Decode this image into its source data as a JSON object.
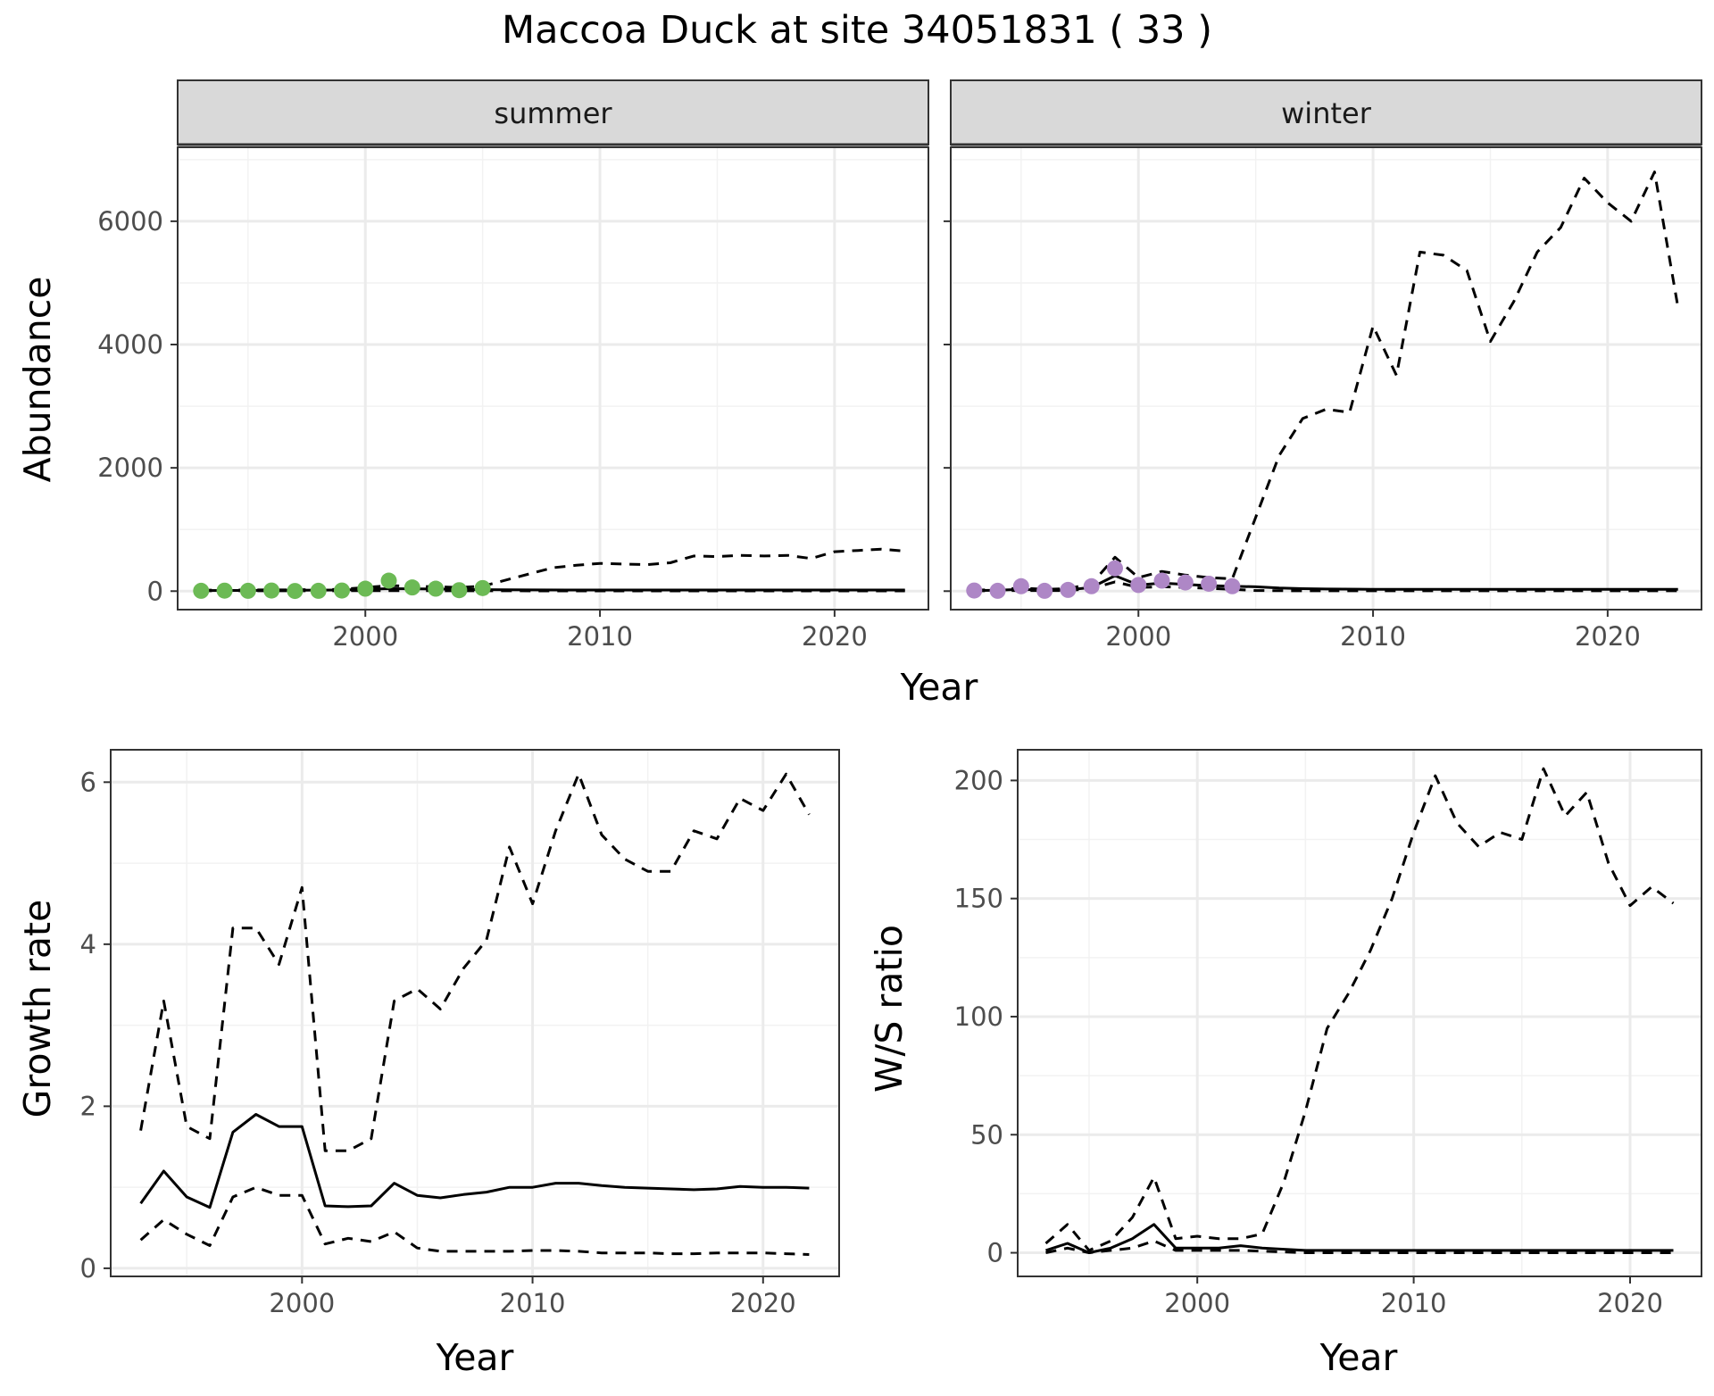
{
  "title": "Maccoa Duck at site 34051831 ( 33 )",
  "colors": {
    "summer_points": "#6CBA55",
    "winter_points": "#AE87C6",
    "line": "#000000",
    "strip_fill": "#D9D9D9",
    "grid": "#EBEBEB"
  },
  "chart_data": [
    {
      "type": "line",
      "panel": "summer",
      "strip_label": "summer",
      "xlabel": "Year",
      "ylabel": "Abundance",
      "xlim": [
        1992,
        2024
      ],
      "ylim": [
        -300,
        7200
      ],
      "xticks": [
        2000,
        2010,
        2020
      ],
      "yticks": [
        0,
        2000,
        4000,
        6000
      ],
      "grid": true,
      "series": [
        {
          "style": "solid",
          "x": [
            1993,
            1995,
            1997,
            1999,
            2001,
            2003,
            2005,
            2007,
            2010,
            2013,
            2016,
            2019,
            2023
          ],
          "values": [
            10,
            12,
            14,
            18,
            40,
            35,
            25,
            20,
            18,
            18,
            18,
            18,
            18
          ]
        },
        {
          "style": "dashed",
          "x": [
            1993,
            1995,
            1997,
            1999,
            2001,
            2002,
            2003,
            2004,
            2005,
            2006,
            2007,
            2008,
            2009,
            2010,
            2011,
            2012,
            2013,
            2014,
            2015,
            2016,
            2017,
            2018,
            2019,
            2020,
            2021,
            2022,
            2023
          ],
          "values": [
            15,
            20,
            22,
            30,
            90,
            80,
            70,
            60,
            80,
            180,
            280,
            380,
            420,
            450,
            440,
            430,
            460,
            570,
            560,
            580,
            570,
            580,
            530,
            640,
            660,
            680,
            650
          ]
        },
        {
          "style": "dashed",
          "x": [
            1993,
            1997,
            2001,
            2005,
            2010,
            2015,
            2020,
            2023
          ],
          "values": [
            5,
            6,
            8,
            5,
            4,
            4,
            4,
            4
          ]
        }
      ],
      "points": {
        "x": [
          1993,
          1994,
          1995,
          1996,
          1997,
          1998,
          1999,
          2000,
          2001,
          2002,
          2003,
          2004,
          2005
        ],
        "values": [
          5,
          8,
          5,
          10,
          3,
          5,
          10,
          40,
          170,
          60,
          40,
          15,
          50
        ]
      }
    },
    {
      "type": "line",
      "panel": "winter",
      "strip_label": "winter",
      "xlabel": "Year",
      "ylabel": "Abundance",
      "xlim": [
        1992,
        2024
      ],
      "ylim": [
        -300,
        7200
      ],
      "xticks": [
        2000,
        2010,
        2020
      ],
      "yticks": [
        0,
        2000,
        4000,
        6000
      ],
      "grid": true,
      "series": [
        {
          "style": "solid",
          "x": [
            1993,
            1994,
            1995,
            1996,
            1997,
            1998,
            1999,
            2000,
            2001,
            2002,
            2003,
            2004,
            2005,
            2006,
            2007,
            2008,
            2010,
            2013,
            2016,
            2019,
            2023
          ],
          "values": [
            10,
            15,
            30,
            15,
            20,
            60,
            250,
            100,
            130,
            110,
            90,
            80,
            70,
            50,
            40,
            35,
            30,
            30,
            30,
            30,
            30
          ]
        },
        {
          "style": "dashed",
          "x": [
            1993,
            1994,
            1995,
            1996,
            1997,
            1998,
            1999,
            2000,
            2001,
            2002,
            2003,
            2004,
            2005,
            2006,
            2007,
            2008,
            2009,
            2010,
            2011,
            2012,
            2013,
            2014,
            2015,
            2016,
            2017,
            2018,
            2019,
            2020,
            2021,
            2022,
            2023
          ],
          "values": [
            15,
            25,
            50,
            30,
            40,
            120,
            550,
            220,
            320,
            260,
            220,
            200,
            1200,
            2200,
            2800,
            2950,
            2900,
            4300,
            3500,
            5500,
            5450,
            5200,
            4050,
            4700,
            5500,
            5900,
            6700,
            6300,
            6000,
            6800,
            4600
          ]
        },
        {
          "style": "dashed",
          "x": [
            1993,
            1995,
            1997,
            1998,
            1999,
            2000,
            2001,
            2002,
            2003,
            2004,
            2005,
            2007,
            2010,
            2015,
            2020,
            2023
          ],
          "values": [
            5,
            10,
            10,
            40,
            150,
            60,
            70,
            60,
            45,
            30,
            10,
            5,
            5,
            5,
            5,
            5
          ]
        }
      ],
      "points": {
        "x": [
          1993,
          1994,
          1995,
          1996,
          1997,
          1998,
          1999,
          2000,
          2001,
          2002,
          2003,
          2004
        ],
        "values": [
          10,
          5,
          80,
          5,
          20,
          80,
          370,
          100,
          170,
          140,
          120,
          80
        ]
      }
    },
    {
      "type": "line",
      "panel": "growth",
      "xlabel": "Year",
      "ylabel": "Growth rate",
      "xlim": [
        1991.7,
        2023.3
      ],
      "ylim": [
        -0.1,
        6.4
      ],
      "xticks": [
        2000,
        2010,
        2020
      ],
      "yticks": [
        0,
        2,
        4,
        6
      ],
      "grid": true,
      "series": [
        {
          "style": "solid",
          "x": [
            1993,
            1994,
            1995,
            1996,
            1997,
            1998,
            1999,
            2000,
            2001,
            2002,
            2003,
            2004,
            2005,
            2006,
            2007,
            2008,
            2009,
            2010,
            2011,
            2012,
            2013,
            2014,
            2015,
            2016,
            2017,
            2018,
            2019,
            2020,
            2021,
            2022
          ],
          "values": [
            0.8,
            1.2,
            0.88,
            0.75,
            1.68,
            1.9,
            1.75,
            1.75,
            0.77,
            0.76,
            0.77,
            1.05,
            0.9,
            0.87,
            0.91,
            0.94,
            1.0,
            1.0,
            1.05,
            1.05,
            1.02,
            1.0,
            0.99,
            0.98,
            0.97,
            0.98,
            1.01,
            1.0,
            1.0,
            0.99
          ]
        },
        {
          "style": "dashed",
          "x": [
            1993,
            1994,
            1995,
            1996,
            1997,
            1998,
            1999,
            2000,
            2001,
            2002,
            2003,
            2004,
            2005,
            2006,
            2007,
            2008,
            2009,
            2010,
            2011,
            2012,
            2013,
            2014,
            2015,
            2016,
            2017,
            2018,
            2019,
            2020,
            2021,
            2022
          ],
          "values": [
            1.7,
            3.3,
            1.75,
            1.6,
            4.2,
            4.2,
            3.75,
            4.7,
            1.45,
            1.45,
            1.6,
            3.3,
            3.45,
            3.2,
            3.7,
            4.05,
            5.2,
            4.5,
            5.4,
            6.1,
            5.35,
            5.05,
            4.9,
            4.9,
            5.4,
            5.3,
            5.8,
            5.65,
            6.1,
            5.6
          ]
        },
        {
          "style": "dashed",
          "x": [
            1993,
            1994,
            1995,
            1996,
            1997,
            1998,
            1999,
            2000,
            2001,
            2002,
            2003,
            2004,
            2005,
            2006,
            2007,
            2008,
            2009,
            2010,
            2011,
            2012,
            2013,
            2014,
            2015,
            2016,
            2017,
            2018,
            2019,
            2020,
            2021,
            2022
          ],
          "values": [
            0.35,
            0.6,
            0.42,
            0.28,
            0.88,
            1.0,
            0.9,
            0.9,
            0.3,
            0.37,
            0.33,
            0.45,
            0.25,
            0.21,
            0.21,
            0.21,
            0.21,
            0.22,
            0.22,
            0.21,
            0.19,
            0.19,
            0.19,
            0.18,
            0.18,
            0.19,
            0.19,
            0.19,
            0.18,
            0.17
          ]
        }
      ]
    },
    {
      "type": "line",
      "panel": "ratio",
      "xlabel": "Year",
      "ylabel": "W/S ratio",
      "xlim": [
        1991.7,
        2023.3
      ],
      "ylim": [
        -10,
        213
      ],
      "xticks": [
        2000,
        2010,
        2020
      ],
      "yticks": [
        0,
        50,
        100,
        150,
        200
      ],
      "grid": true,
      "series": [
        {
          "style": "solid",
          "x": [
            1993,
            1994,
            1995,
            1996,
            1997,
            1998,
            1999,
            2000,
            2001,
            2002,
            2003,
            2005,
            2008,
            2011,
            2014,
            2017,
            2020,
            2022
          ],
          "values": [
            1,
            4,
            0,
            2,
            6,
            12,
            2,
            2,
            2,
            3,
            2,
            1,
            1,
            1,
            1,
            1,
            1,
            1
          ]
        },
        {
          "style": "dashed",
          "x": [
            1993,
            1994,
            1995,
            1996,
            1997,
            1998,
            1999,
            2000,
            2001,
            2002,
            2003,
            2004,
            2005,
            2006,
            2007,
            2008,
            2009,
            2010,
            2011,
            2012,
            2013,
            2014,
            2015,
            2016,
            2017,
            2018,
            2019,
            2020,
            2021,
            2022
          ],
          "values": [
            4,
            12,
            1,
            5,
            15,
            32,
            6,
            7,
            6,
            6,
            8,
            30,
            60,
            95,
            110,
            128,
            150,
            178,
            202,
            182,
            172,
            178,
            175,
            205,
            185,
            195,
            165,
            147,
            155,
            148
          ]
        },
        {
          "style": "dashed",
          "x": [
            1993,
            1994,
            1995,
            1996,
            1997,
            1998,
            1999,
            2000,
            2002,
            2005,
            2010,
            2015,
            2020,
            2022
          ],
          "values": [
            0,
            2,
            0,
            1,
            2,
            5,
            1,
            1,
            1,
            0,
            0,
            0,
            0,
            0
          ]
        }
      ]
    }
  ]
}
